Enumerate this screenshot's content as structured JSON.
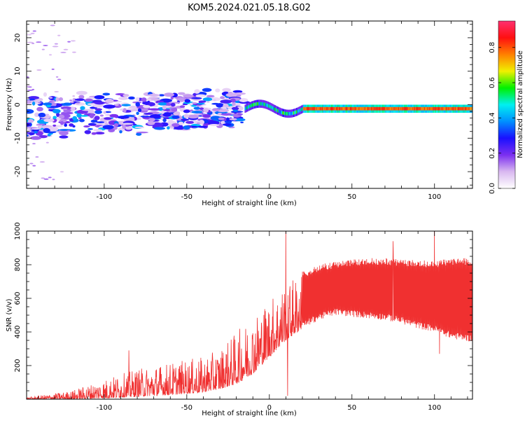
{
  "figure_title": "KOM5.2024.021.05.18.G02",
  "chart_data": [
    {
      "type": "heatmap",
      "title": "KOM5.2024.021.05.18.G02",
      "xlabel": "Height of straight line (km)",
      "ylabel": "Frequency (Hz)",
      "xlim": [
        -147,
        123
      ],
      "ylim": [
        -25,
        25
      ],
      "xticks": [
        -100,
        -50,
        0,
        50,
        100
      ],
      "yticks": [
        -20,
        -10,
        0,
        10,
        20
      ],
      "grid": false,
      "colorbar": {
        "label": "Normalized spectral amplitude",
        "range": [
          0.0,
          0.95
        ],
        "ticks": [
          "0.0",
          "0.2",
          "0.4",
          "0.6",
          "0.8"
        ],
        "colormap": [
          "#ffffff",
          "#d9b8f0",
          "#7b2ff0",
          "#1a10ff",
          "#0090ff",
          "#00f0f0",
          "#00f000",
          "#f0f000",
          "#ff8000",
          "#ff1010",
          "#ff3070"
        ]
      },
      "features": [
        {
          "region": "scattered echoes",
          "x": [
            -147,
            -15
          ],
          "y": [
            -12,
            8
          ],
          "amplitude": [
            0.05,
            0.45
          ]
        },
        {
          "region": "coherent signal near 0 Hz",
          "x": [
            -15,
            123
          ],
          "y": [
            -2.5,
            1
          ],
          "amplitude": [
            0.3,
            0.9
          ]
        }
      ]
    },
    {
      "type": "line",
      "xlabel": "Height of straight line (km)",
      "ylabel": "SNR (v/v)",
      "xlim": [
        -147,
        123
      ],
      "ylim": [
        0,
        1000
      ],
      "xticks": [
        -100,
        -50,
        0,
        50,
        100
      ],
      "yticks": [
        200,
        400,
        600,
        800,
        1000
      ],
      "color": "#f03030",
      "grid": false,
      "envelope": {
        "x": [
          -147,
          -120,
          -100,
          -80,
          -60,
          -40,
          -30,
          -20,
          -10,
          0,
          10,
          20,
          30,
          40,
          50,
          60,
          70,
          80,
          90,
          100,
          110,
          123
        ],
        "low": [
          0,
          0,
          5,
          15,
          25,
          40,
          60,
          90,
          150,
          250,
          350,
          420,
          470,
          500,
          490,
          480,
          470,
          450,
          420,
          400,
          360,
          340
        ],
        "high": [
          10,
          50,
          120,
          180,
          220,
          250,
          300,
          400,
          500,
          600,
          700,
          760,
          800,
          820,
          830,
          840,
          840,
          830,
          830,
          820,
          840,
          840
        ]
      },
      "spikes": [
        {
          "x": 10,
          "y": 1000
        },
        {
          "x": 11,
          "y": 20
        },
        {
          "x": 75,
          "y": 940
        },
        {
          "x": 100,
          "y": 1000
        },
        {
          "x": 103,
          "y": 270
        },
        {
          "x": -85,
          "y": 290
        }
      ]
    }
  ]
}
